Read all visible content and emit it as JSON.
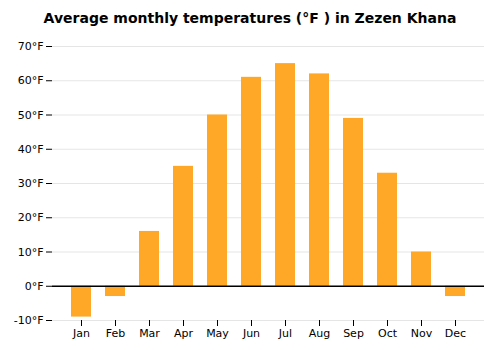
{
  "chart_data": {
    "type": "bar",
    "title": "Average monthly temperatures (°F ) in Zezen Khana",
    "categories": [
      "Jan",
      "Feb",
      "Mar",
      "Apr",
      "May",
      "Jun",
      "Jul",
      "Aug",
      "Sep",
      "Oct",
      "Nov",
      "Dec"
    ],
    "values": [
      -9,
      -3,
      16,
      35,
      50,
      61,
      65,
      62,
      49,
      33,
      10,
      -3
    ],
    "color": "#FFA726",
    "ylim": [
      -10,
      70
    ],
    "yticks": [
      {
        "value": -10,
        "label": "-10°F"
      },
      {
        "value": 0,
        "label": "0°F"
      },
      {
        "value": 10,
        "label": "10°F"
      },
      {
        "value": 20,
        "label": "20°F"
      },
      {
        "value": 30,
        "label": "30°F"
      },
      {
        "value": 40,
        "label": "40°F"
      },
      {
        "value": 50,
        "label": "50°F"
      },
      {
        "value": 60,
        "label": "60°F"
      },
      {
        "value": 70,
        "label": "70°F"
      }
    ],
    "grid": true
  }
}
